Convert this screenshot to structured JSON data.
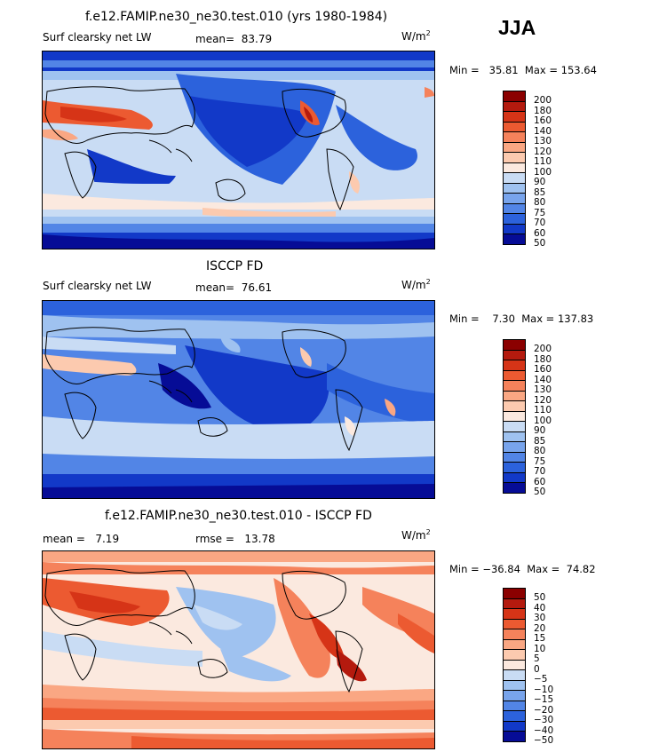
{
  "season": "JJA",
  "units": "W/m",
  "units_exp": "2",
  "panels": [
    {
      "title": "f.e12.FAMIP.ne30_ne30.test.010 (yrs 1980-1984)",
      "variable": "Surf clearsky net LW",
      "mean_label": "mean=",
      "mean_value": "83.79",
      "min_label": "Min =",
      "min_value": "35.81",
      "max_label": "Max =",
      "max_value": "153.64",
      "colorbar_levels": [
        "200",
        "180",
        "160",
        "140",
        "130",
        "120",
        "110",
        "100",
        "90",
        "85",
        "80",
        "75",
        "70",
        "60",
        "50"
      ]
    },
    {
      "title": "ISCCP FD",
      "variable": "Surf clearsky net LW",
      "mean_label": "mean=",
      "mean_value": "76.61",
      "min_label": "Min =",
      "min_value": "7.30",
      "max_label": "Max =",
      "max_value": "137.83",
      "colorbar_levels": [
        "200",
        "180",
        "160",
        "140",
        "130",
        "120",
        "110",
        "100",
        "90",
        "85",
        "80",
        "75",
        "70",
        "60",
        "50"
      ]
    },
    {
      "title": "f.e12.FAMIP.ne30_ne30.test.010 - ISCCP FD",
      "mean_label": "mean =",
      "mean_value": "7.19",
      "rmse_label": "rmse =",
      "rmse_value": "13.78",
      "min_label": "Min =",
      "min_value": "−36.84",
      "max_label": "Max =",
      "max_value": "74.82",
      "colorbar_levels": [
        "50",
        "40",
        "30",
        "20",
        "15",
        "10",
        "5",
        "0",
        "−5",
        "−10",
        "−15",
        "−20",
        "−30",
        "−40",
        "−50"
      ]
    }
  ],
  "colors": {
    "scale": [
      "#8b0000",
      "#b41a0e",
      "#d63417",
      "#ec5a31",
      "#f5825b",
      "#faa783",
      "#fccaaf",
      "#fbe9df",
      "#c9dcf4",
      "#9fc2f0",
      "#78a4ec",
      "#5285e6",
      "#2c62dc",
      "#1239c8",
      "#060c96"
    ]
  },
  "chart_data": [
    {
      "type": "heatmap",
      "title": "f.e12.FAMIP.ne30_ne30.test.010 (yrs 1980-1984)",
      "field": "Surf clearsky net LW",
      "units": "W/m2",
      "mean": 83.79,
      "min": 35.81,
      "max": 153.64,
      "levels": [
        50,
        60,
        70,
        75,
        80,
        85,
        90,
        100,
        110,
        120,
        130,
        140,
        160,
        180,
        200
      ]
    },
    {
      "type": "heatmap",
      "title": "ISCCP FD",
      "field": "Surf clearsky net LW",
      "units": "W/m2",
      "mean": 76.61,
      "min": 7.3,
      "max": 137.83,
      "levels": [
        50,
        60,
        70,
        75,
        80,
        85,
        90,
        100,
        110,
        120,
        130,
        140,
        160,
        180,
        200
      ]
    },
    {
      "type": "heatmap",
      "title": "f.e12.FAMIP.ne30_ne30.test.010 - ISCCP FD",
      "units": "W/m2",
      "mean": 7.19,
      "rmse": 13.78,
      "min": -36.84,
      "max": 74.82,
      "levels": [
        -50,
        -40,
        -30,
        -20,
        -15,
        -10,
        -5,
        0,
        5,
        10,
        15,
        20,
        30,
        40,
        50
      ]
    }
  ]
}
